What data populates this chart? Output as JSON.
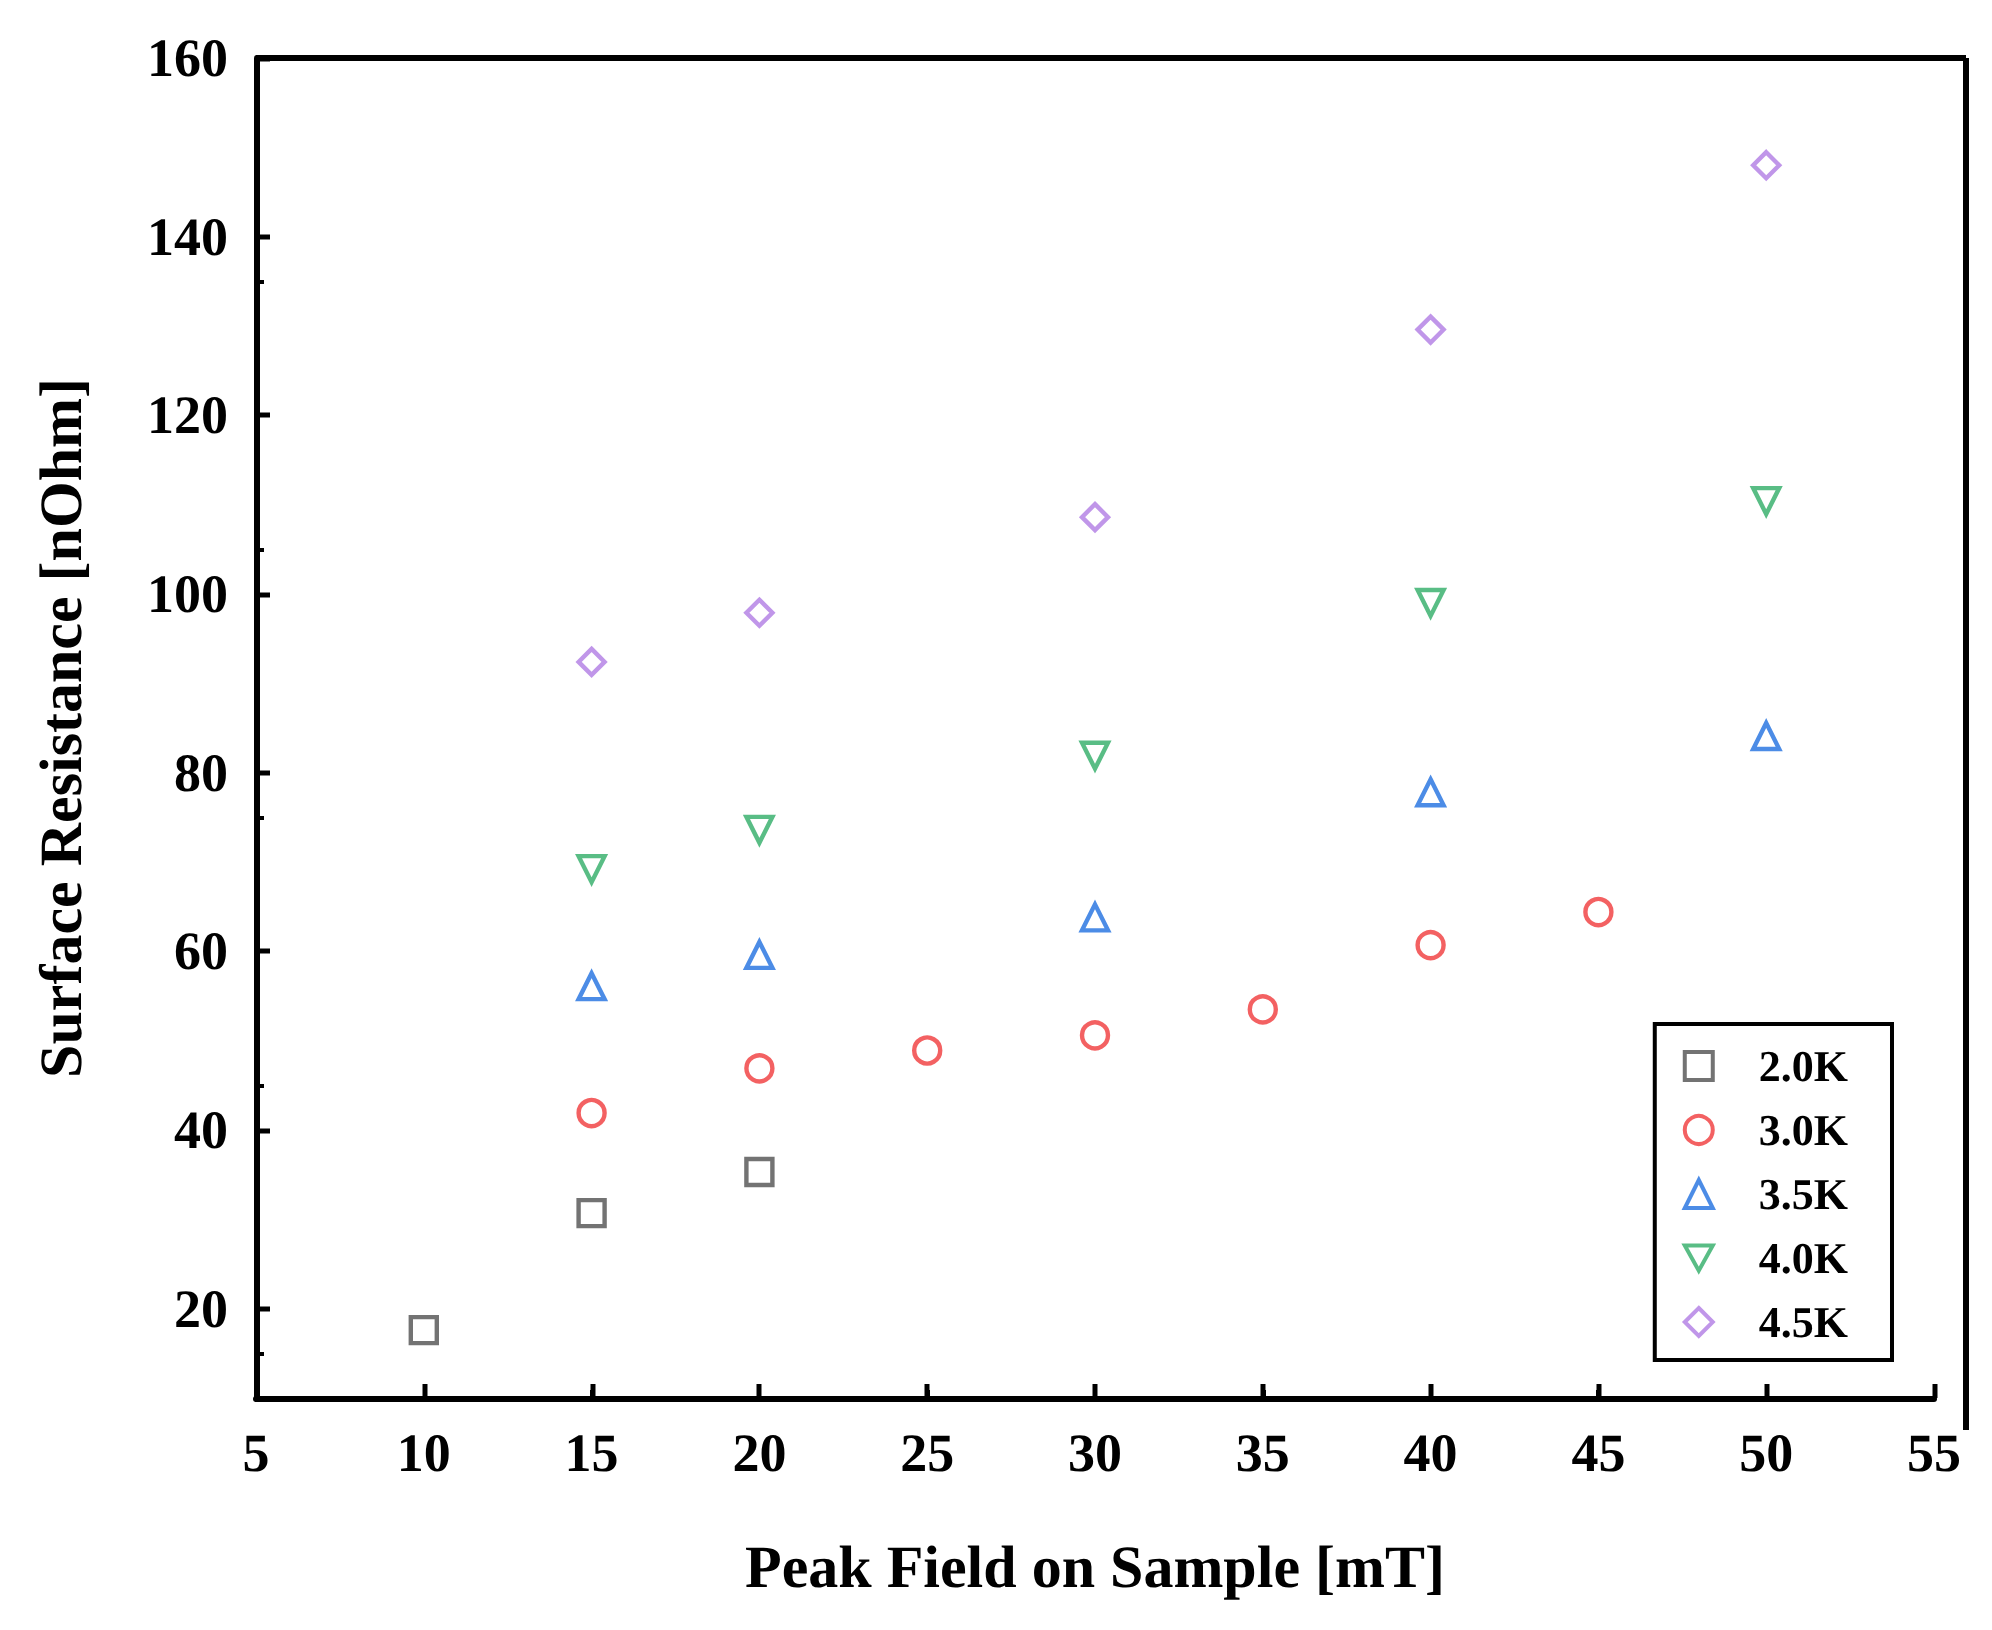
{
  "chart_data": {
    "type": "scatter",
    "xlabel": "Peak Field on Sample [mT]",
    "ylabel": "Surface Resistance [nOhm]",
    "xlim": [
      5,
      55
    ],
    "xticks": [
      5,
      10,
      15,
      20,
      25,
      30,
      35,
      40,
      45,
      50,
      55
    ],
    "ylim": [
      10,
      160
    ],
    "yticks": [
      20,
      40,
      60,
      80,
      100,
      120,
      140,
      160
    ],
    "grid": false,
    "legend": "bottom right",
    "series": [
      {
        "name": "2.0K",
        "color": "#505050",
        "marker": "square",
        "x": [
          10,
          15,
          20
        ],
        "values": [
          17.6,
          30.7,
          35.3
        ]
      },
      {
        "name": "3.0K",
        "color": "#f0393b",
        "marker": "circle",
        "x": [
          15,
          20,
          25,
          30,
          35,
          40,
          45
        ],
        "values": [
          41.9,
          46.9,
          48.9,
          50.6,
          53.5,
          60.7,
          64.4
        ]
      },
      {
        "name": "3.5K",
        "color": "#1f6fe0",
        "marker": "triangle",
        "x": [
          15,
          20,
          30,
          40,
          50
        ],
        "values": [
          56.1,
          59.6,
          63.8,
          77.8,
          84.1
        ]
      },
      {
        "name": "4.0K",
        "color": "#2fac66",
        "marker": "triangle-down",
        "x": [
          15,
          20,
          30,
          40,
          50
        ],
        "values": [
          69.2,
          73.6,
          81.9,
          99.0,
          110.4
        ]
      },
      {
        "name": "4.5K",
        "color": "#b07ce4",
        "marker": "diamond",
        "x": [
          15,
          20,
          30,
          40,
          50
        ],
        "values": [
          92.4,
          97.9,
          108.6,
          129.6,
          148.0
        ]
      }
    ]
  }
}
